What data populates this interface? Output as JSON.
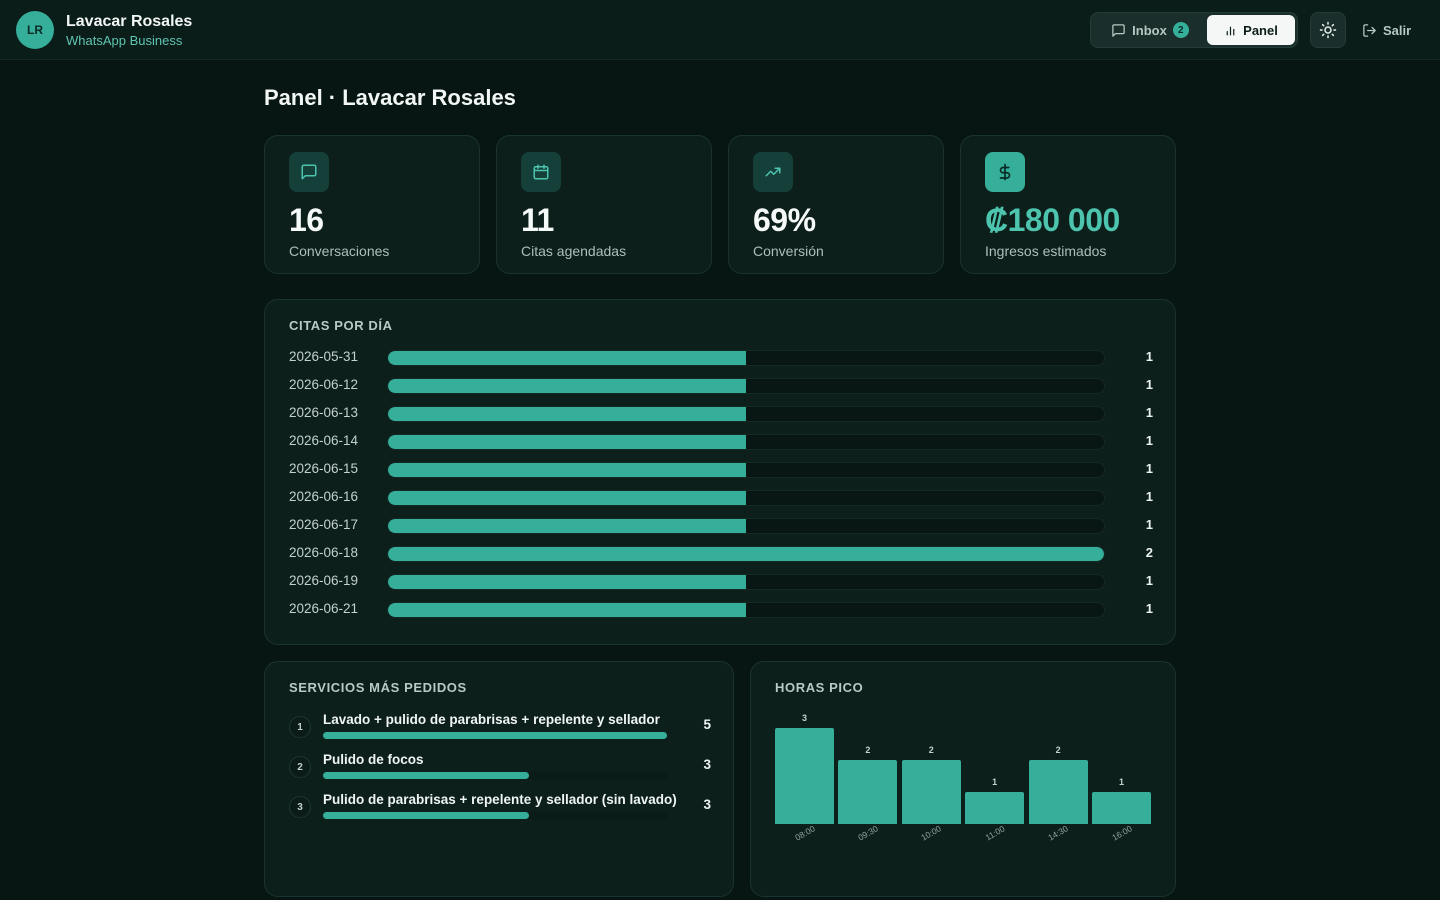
{
  "header": {
    "avatar_initials": "LR",
    "business_name": "Lavacar Rosales",
    "business_sub": "WhatsApp Business",
    "nav": {
      "inbox_label": "Inbox",
      "inbox_badge": "2",
      "panel_label": "Panel"
    },
    "logout_label": "Salir"
  },
  "page_title": "Panel · Lavacar Rosales",
  "stats": [
    {
      "value": "16",
      "label": "Conversaciones",
      "icon": "message-icon"
    },
    {
      "value": "11",
      "label": "Citas agendadas",
      "icon": "calendar-icon"
    },
    {
      "value": "69%",
      "label": "Conversión",
      "icon": "trending-up-icon"
    },
    {
      "value": "₡180 000",
      "label": "Ingresos estimados",
      "icon": "dollar-icon"
    }
  ],
  "citas": {
    "title": "CITAS POR DÍA",
    "max": 2,
    "rows": [
      {
        "date": "2026-05-31",
        "count": 1
      },
      {
        "date": "2026-06-12",
        "count": 1
      },
      {
        "date": "2026-06-13",
        "count": 1
      },
      {
        "date": "2026-06-14",
        "count": 1
      },
      {
        "date": "2026-06-15",
        "count": 1
      },
      {
        "date": "2026-06-16",
        "count": 1
      },
      {
        "date": "2026-06-17",
        "count": 1
      },
      {
        "date": "2026-06-18",
        "count": 2
      },
      {
        "date": "2026-06-19",
        "count": 1
      },
      {
        "date": "2026-06-21",
        "count": 1
      }
    ]
  },
  "servicios": {
    "title": "SERVICIOS MÁS PEDIDOS",
    "max": 5,
    "items": [
      {
        "rank": "1",
        "name": "Lavado + pulido de parabrisas + repelente y sellador",
        "count": 5
      },
      {
        "rank": "2",
        "name": "Pulido de focos",
        "count": 3
      },
      {
        "rank": "3",
        "name": "Pulido de parabrisas + repelente y sellador (sin lavado)",
        "count": 3
      }
    ]
  },
  "horas": {
    "title": "HORAS PICO",
    "max": 3,
    "items": [
      {
        "hour": "08:00",
        "count": 3
      },
      {
        "hour": "09:30",
        "count": 2
      },
      {
        "hour": "10:00",
        "count": 2
      },
      {
        "hour": "11:00",
        "count": 1
      },
      {
        "hour": "14:30",
        "count": 2
      },
      {
        "hour": "16:00",
        "count": 1
      }
    ]
  },
  "colors": {
    "accent": "#35ae9a",
    "background": "#071613",
    "card": "#0c1f1b"
  }
}
